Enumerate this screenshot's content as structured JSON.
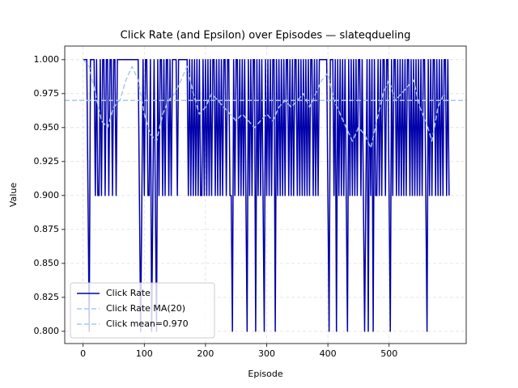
{
  "chart_data": {
    "type": "line",
    "title": "Click Rate (and Epsilon) over Episodes — slateqdueling",
    "x_label": "Episode",
    "y_label": "Value",
    "xlim": [
      -30,
      626
    ],
    "ylim": [
      0.791,
      1.01
    ],
    "xticks": [
      0,
      100,
      200,
      300,
      400,
      500
    ],
    "yticks": [
      {
        "value": 0.8,
        "label": "0.800"
      },
      {
        "value": 0.825,
        "label": "0.825"
      },
      {
        "value": 0.85,
        "label": "0.850"
      },
      {
        "value": 0.875,
        "label": "0.875"
      },
      {
        "value": 0.9,
        "label": "0.900"
      },
      {
        "value": 0.925,
        "label": "0.925"
      },
      {
        "value": 0.95,
        "label": "0.950"
      },
      {
        "value": 0.975,
        "label": "0.975"
      },
      {
        "value": 1.0,
        "label": "1.000"
      }
    ],
    "grid": true,
    "legend": "lower left",
    "series": [
      {
        "name": "Click Rate",
        "color": "#0000aa",
        "style": "solid",
        "x": [
          0,
          2,
          4,
          6,
          8,
          10,
          12,
          14,
          16,
          18,
          20,
          22,
          24,
          26,
          28,
          30,
          32,
          34,
          36,
          38,
          40,
          42,
          44,
          46,
          48,
          50,
          52,
          54,
          56,
          58,
          60,
          62,
          64,
          66,
          68,
          70,
          72,
          74,
          76,
          78,
          80,
          82,
          84,
          86,
          88,
          90,
          92,
          94,
          96,
          98,
          100,
          102,
          104,
          106,
          108,
          110,
          112,
          114,
          116,
          118,
          120,
          122,
          124,
          126,
          128,
          130,
          132,
          134,
          136,
          138,
          140,
          142,
          144,
          146,
          148,
          150,
          152,
          154,
          156,
          158,
          160,
          162,
          164,
          166,
          168,
          170,
          172,
          174,
          176,
          178,
          180,
          182,
          184,
          186,
          188,
          190,
          192,
          194,
          196,
          198,
          200,
          202,
          204,
          206,
          208,
          210,
          212,
          214,
          216,
          218,
          220,
          222,
          224,
          226,
          228,
          230,
          232,
          234,
          236,
          238,
          240,
          242,
          244,
          246,
          248,
          250,
          252,
          254,
          256,
          258,
          260,
          262,
          264,
          266,
          268,
          270,
          272,
          274,
          276,
          278,
          280,
          282,
          284,
          286,
          288,
          290,
          292,
          294,
          296,
          298,
          300,
          302,
          304,
          306,
          308,
          310,
          312,
          314,
          316,
          318,
          320,
          322,
          324,
          326,
          328,
          330,
          332,
          334,
          336,
          338,
          340,
          342,
          344,
          346,
          348,
          350,
          352,
          354,
          356,
          358,
          360,
          362,
          364,
          366,
          368,
          370,
          372,
          374,
          376,
          378,
          380,
          382,
          384,
          386,
          388,
          390,
          392,
          394,
          396,
          398,
          400,
          402,
          404,
          406,
          408,
          410,
          412,
          414,
          416,
          418,
          420,
          422,
          424,
          426,
          428,
          430,
          432,
          434,
          436,
          438,
          440,
          442,
          444,
          446,
          448,
          450,
          452,
          454,
          456,
          458,
          460,
          462,
          464,
          466,
          468,
          470,
          472,
          474,
          476,
          478,
          480,
          482,
          484,
          486,
          488,
          490,
          492,
          494,
          496,
          498,
          500,
          502,
          504,
          506,
          508,
          510,
          512,
          514,
          516,
          518,
          520,
          522,
          524,
          526,
          528,
          530,
          532,
          534,
          536,
          538,
          540,
          542,
          544,
          546,
          548,
          550,
          552,
          554,
          556,
          558,
          560,
          562,
          564,
          566,
          568,
          570,
          572,
          574,
          576,
          578,
          580,
          582,
          584,
          586,
          588,
          590,
          592,
          594,
          596,
          598
        ],
        "values": [
          1,
          1,
          1,
          1,
          0.9,
          0.8,
          1,
          1,
          1,
          1,
          0.9,
          1,
          0.9,
          0.9,
          1,
          0.9,
          1,
          1,
          0.9,
          1,
          1,
          0.9,
          1,
          1,
          0.9,
          1,
          1,
          0.9,
          1,
          1,
          1,
          1,
          1,
          1,
          1,
          1,
          1,
          1,
          1,
          1,
          1,
          1,
          1,
          1,
          1,
          1,
          0.9,
          0.8,
          0.9,
          1,
          0.9,
          1,
          1,
          0.9,
          0.9,
          1,
          0.8,
          0.9,
          1,
          0.9,
          0.8,
          1,
          0.9,
          1,
          1,
          0.9,
          1,
          0.9,
          1,
          1,
          0.9,
          1,
          0.9,
          1,
          1,
          1,
          1,
          0.9,
          1,
          1,
          1,
          1,
          1,
          1,
          1,
          1,
          0.9,
          1,
          0.9,
          1,
          0.9,
          1,
          0.9,
          1,
          0.9,
          1,
          0.9,
          0.9,
          1,
          0.9,
          1,
          0.9,
          1,
          0.9,
          1,
          0.9,
          1,
          1,
          0.9,
          1,
          0.9,
          1,
          0.9,
          1,
          0.9,
          1,
          1,
          0.9,
          1,
          1,
          0.9,
          0.9,
          0.8,
          1,
          0.9,
          1,
          1,
          0.9,
          1,
          0.9,
          1,
          0.9,
          1,
          0.9,
          0.8,
          1,
          0.9,
          1,
          0.9,
          1,
          1,
          0.8,
          1,
          0.9,
          1,
          0.9,
          1,
          0.9,
          0.8,
          1,
          0.9,
          1,
          0.9,
          1,
          0.9,
          1,
          1,
          0.8,
          1,
          0.9,
          1,
          0.9,
          1,
          0.9,
          1,
          0.9,
          1,
          1,
          0.9,
          1,
          0.9,
          1,
          0.9,
          1,
          1,
          0.9,
          1,
          0.9,
          1,
          0.9,
          1,
          0.9,
          1,
          0.9,
          1,
          0.9,
          1,
          1,
          0.9,
          1,
          0.9,
          1,
          0.9,
          1,
          1,
          1,
          1,
          1,
          1,
          1,
          0.9,
          0.8,
          1,
          1,
          1,
          0.9,
          1,
          0.8,
          1,
          0.9,
          1,
          0.9,
          1,
          0.9,
          1,
          0.9,
          0.8,
          1,
          0.9,
          1,
          0.9,
          1,
          0.9,
          1,
          0.9,
          1,
          1,
          0.9,
          1,
          0.9,
          0.8,
          0.9,
          1,
          0.8,
          1,
          0.9,
          1,
          0.8,
          1,
          0.9,
          0.9,
          1,
          0.9,
          1,
          0.9,
          1,
          1,
          0.9,
          1,
          1,
          0.9,
          0.8,
          1,
          0.9,
          1,
          1,
          0.9,
          1,
          0.9,
          1,
          0.9,
          1,
          0.9,
          1,
          0.9,
          1,
          1,
          0.9,
          1,
          0.9,
          1,
          0.9,
          1,
          0.9,
          1,
          0.9,
          1,
          0.9,
          1,
          1,
          0.9,
          0.8,
          1,
          0.9,
          1,
          0.9,
          1,
          1,
          0.9,
          1,
          0.9,
          1,
          0.9,
          1,
          0.9,
          1,
          1,
          0.9,
          1,
          0.9
        ]
      },
      {
        "name": "Click Rate MA(20)",
        "color": "#a6c8f0",
        "style": "dashed",
        "x": [
          0,
          10,
          20,
          30,
          40,
          50,
          60,
          70,
          80,
          90,
          100,
          110,
          120,
          130,
          140,
          150,
          160,
          170,
          180,
          190,
          200,
          210,
          220,
          230,
          240,
          250,
          260,
          270,
          280,
          290,
          300,
          310,
          320,
          330,
          340,
          350,
          360,
          370,
          380,
          390,
          400,
          410,
          420,
          430,
          440,
          450,
          460,
          470,
          480,
          490,
          500,
          510,
          520,
          530,
          540,
          550,
          560,
          570,
          580,
          590
        ],
        "values": [
          1.0,
          0.995,
          0.975,
          0.955,
          0.95,
          0.965,
          0.97,
          0.985,
          0.995,
          0.985,
          0.96,
          0.945,
          0.94,
          0.96,
          0.97,
          0.975,
          0.985,
          0.995,
          0.975,
          0.96,
          0.965,
          0.975,
          0.97,
          0.965,
          0.96,
          0.955,
          0.96,
          0.955,
          0.95,
          0.955,
          0.96,
          0.955,
          0.965,
          0.97,
          0.965,
          0.97,
          0.975,
          0.965,
          0.975,
          0.985,
          0.99,
          0.97,
          0.96,
          0.95,
          0.94,
          0.95,
          0.945,
          0.935,
          0.955,
          0.975,
          0.985,
          0.97,
          0.975,
          0.98,
          0.985,
          0.965,
          0.955,
          0.94,
          0.965,
          0.975
        ]
      },
      {
        "name": "Click mean=0.970",
        "color": "#a6c8f0",
        "style": "dashed",
        "hline": 0.97
      }
    ]
  }
}
